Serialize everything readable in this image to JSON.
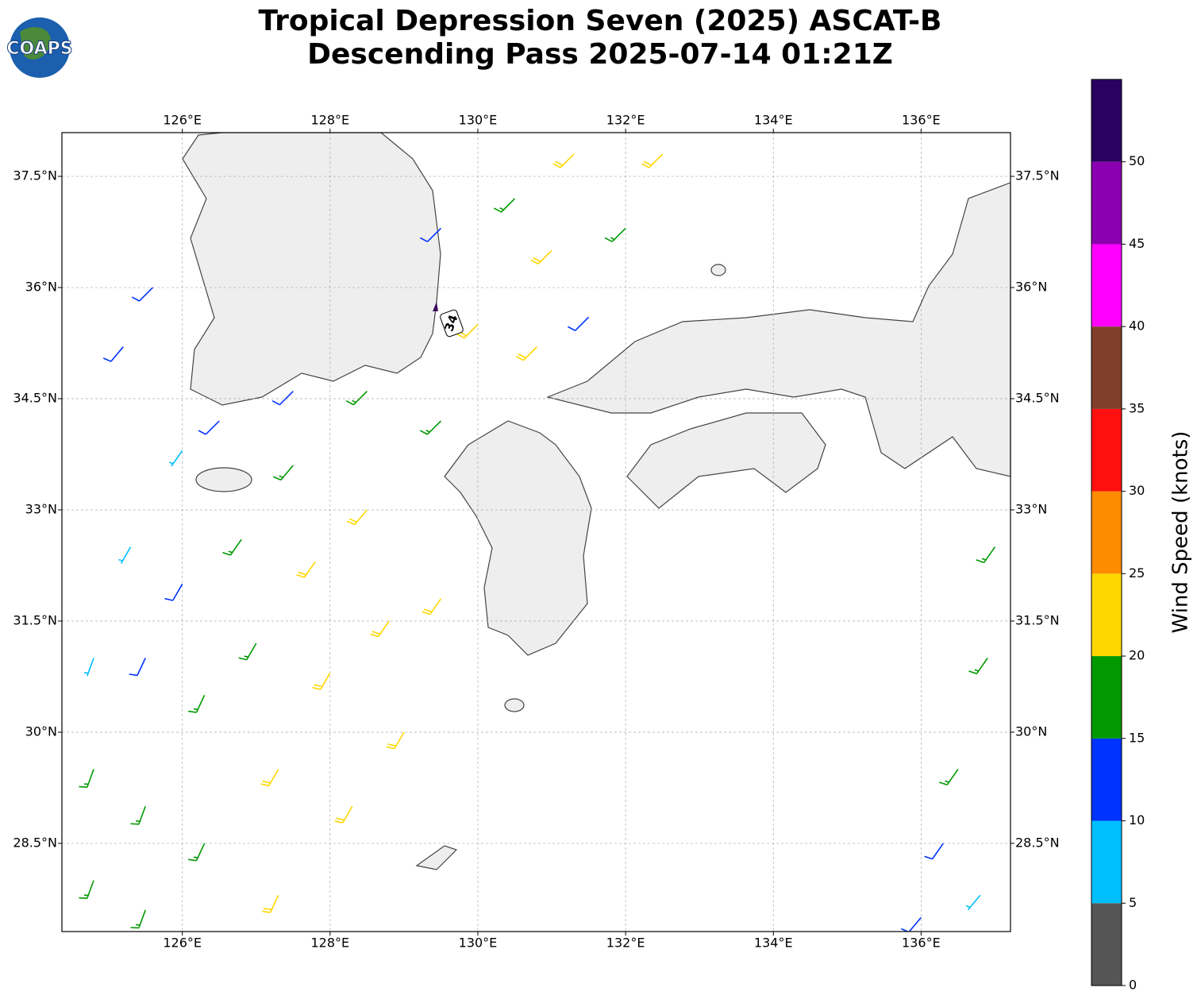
{
  "chart_data": {
    "type": "barb-map",
    "logo": "COAPS",
    "title": [
      "Tropical Depression Seven (2025) ASCAT-B",
      "Descending Pass 2025-07-14 01:21Z"
    ],
    "xlim": [
      124.37,
      137.21
    ],
    "ylim": [
      27.31,
      38.09
    ],
    "xticks": [
      {
        "value": 126,
        "label": "126°E"
      },
      {
        "value": 128,
        "label": "128°E"
      },
      {
        "value": 130,
        "label": "130°E"
      },
      {
        "value": 132,
        "label": "132°E"
      },
      {
        "value": 134,
        "label": "134°E"
      },
      {
        "value": 136,
        "label": "136°E"
      }
    ],
    "yticks": [
      {
        "value": 28.5,
        "label": "28.5°N"
      },
      {
        "value": 30,
        "label": "30°N"
      },
      {
        "value": 31.5,
        "label": "31.5°N"
      },
      {
        "value": 33,
        "label": "33°N"
      },
      {
        "value": 34.5,
        "label": "34.5°N"
      },
      {
        "value": 36,
        "label": "36°N"
      },
      {
        "value": 37.5,
        "label": "37.5°N"
      }
    ],
    "grid": true,
    "storm_label": "34",
    "barbs": {
      "lon": [
        124.8,
        124.8,
        124.8,
        125.3,
        125.5,
        125.5,
        125.5,
        126.0,
        126.0,
        126.3,
        126.3,
        126.8,
        127.0,
        127.3,
        127.3,
        127.5,
        127.8,
        128.0,
        128.3,
        128.5,
        128.8,
        129.0,
        129.5,
        125.2,
        125.6,
        126.5,
        127.5,
        128.5,
        129.5,
        129.5,
        130.0,
        130.5,
        130.8,
        131.0,
        131.3,
        131.5,
        132.0,
        132.5,
        136.0,
        136.5,
        136.8,
        136.9,
        137.0,
        136.3
      ],
      "lat": [
        31.0,
        29.5,
        28.0,
        32.5,
        31.0,
        29.0,
        27.6,
        33.8,
        32.0,
        30.5,
        28.5,
        32.6,
        31.2,
        29.5,
        27.8,
        33.6,
        32.3,
        30.8,
        29.0,
        33.0,
        31.5,
        30.0,
        31.8,
        35.2,
        36.0,
        34.2,
        34.6,
        34.6,
        34.2,
        36.8,
        35.5,
        37.2,
        35.2,
        36.5,
        37.8,
        35.6,
        36.8,
        37.8,
        27.5,
        29.5,
        27.8,
        31.0,
        32.5,
        28.5
      ],
      "speed": [
        8,
        17,
        17,
        8,
        12,
        17,
        18,
        7,
        12,
        18,
        18,
        17,
        18,
        22,
        22,
        17,
        22,
        22,
        22,
        22,
        22,
        22,
        22,
        12,
        12,
        12,
        13,
        17,
        18,
        12,
        22,
        17,
        22,
        22,
        22,
        14,
        17,
        20,
        12,
        17,
        8,
        17,
        17,
        13
      ],
      "direction": [
        200,
        200,
        200,
        210,
        205,
        200,
        200,
        215,
        210,
        205,
        205,
        215,
        210,
        210,
        205,
        220,
        215,
        210,
        210,
        220,
        215,
        210,
        215,
        220,
        225,
        225,
        225,
        225,
        225,
        225,
        225,
        225,
        225,
        225,
        225,
        225,
        225,
        225,
        220,
        215,
        220,
        215,
        215,
        215
      ]
    },
    "colorbar": {
      "label": "Wind Speed (knots)",
      "bounds": [
        0,
        5,
        10,
        15,
        20,
        25,
        30,
        35,
        40,
        45,
        50,
        55
      ],
      "colors": [
        "#555555",
        "#00bfff",
        "#0033ff",
        "#009900",
        "#ffd700",
        "#ff8c00",
        "#ff1010",
        "#7f3f2a",
        "#ff00ff",
        "#8b00b0",
        "#2a0060"
      ],
      "ticks": [
        0,
        5,
        10,
        15,
        20,
        25,
        30,
        35,
        40,
        45,
        50
      ]
    }
  }
}
